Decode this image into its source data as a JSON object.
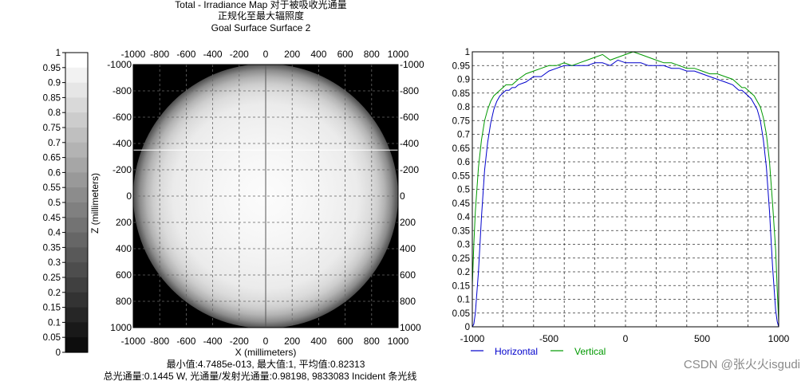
{
  "header": {
    "title": "Total - Irradiance Map 对于被吸收光通量",
    "subtitle1": "正规化至最大辐照度",
    "subtitle2": "Goal Surface Surface 2"
  },
  "footer": {
    "line1": "最小值:4.7485e-013, 最大值:1, 平均值:0.82313",
    "line2": "总光通量:0.1445 W, 光通量/发射光通量:0.98198, 9833083 Incident 条光线"
  },
  "watermark": "CSDN @张火火isgudi",
  "chart_data": [
    {
      "type": "colorbar",
      "colormap": "grayscale",
      "range": [
        0,
        1
      ],
      "ticks": [
        1,
        0.95,
        0.9,
        0.85,
        0.8,
        0.75,
        0.7,
        0.65,
        0.6,
        0.55,
        0.5,
        0.45,
        0.4,
        0.35,
        0.3,
        0.25,
        0.2,
        0.15,
        0.1,
        0.05,
        0
      ],
      "tick_labels": [
        "1",
        "0.95",
        "0.9",
        "0.85",
        "0.8",
        "0.75",
        "0.7",
        "0.65",
        "0.6",
        "0.55",
        "0.5",
        "0.45",
        "0.4",
        "0.35",
        "0.3",
        "0.25",
        "0.2",
        "0.15",
        "0.1",
        "0.05",
        "0"
      ]
    },
    {
      "type": "heatmap",
      "xlabel": "X (millimeters)",
      "ylabel": "Z (millimeters)",
      "xlim": [
        -1000,
        1000
      ],
      "ylim": [
        -1000,
        1000
      ],
      "y_inverted": true,
      "x_ticks": [
        -1000,
        -800,
        -600,
        -400,
        -200,
        0,
        200,
        400,
        600,
        800,
        1000
      ],
      "y_ticks": [
        -1000,
        -800,
        -600,
        -400,
        -200,
        0,
        200,
        400,
        600,
        800,
        1000
      ],
      "grid": true,
      "illuminated_region": {
        "shape": "circle",
        "radius": 1000,
        "profile_r": [
          0,
          300,
          500,
          700,
          800,
          850,
          900,
          950,
          1000
        ],
        "profile_v": [
          0.99,
          0.97,
          0.95,
          0.92,
          0.86,
          0.8,
          0.7,
          0.55,
          0.3
        ]
      },
      "background_value": 0,
      "cross_section": {
        "x": 0,
        "z": -350
      }
    },
    {
      "type": "line",
      "xlim": [
        -1000,
        1000
      ],
      "ylim": [
        0,
        1
      ],
      "x_ticks": [
        -1000,
        -500,
        0,
        500,
        1000
      ],
      "y_ticks": [
        0,
        0.05,
        0.1,
        0.15,
        0.2,
        0.25,
        0.3,
        0.35,
        0.4,
        0.45,
        0.5,
        0.55,
        0.6,
        0.65,
        0.7,
        0.75,
        0.8,
        0.85,
        0.9,
        0.95,
        1
      ],
      "y_tick_labels": [
        "0",
        "0.05",
        "0.1",
        "0.15",
        "0.2",
        "0.25",
        "0.3",
        "0.35",
        "0.4",
        "0.45",
        "0.5",
        "0.55",
        "0.6",
        "0.65",
        "0.7",
        "0.75",
        "0.8",
        "0.85",
        "0.9",
        "0.95",
        "1"
      ],
      "grid": true,
      "legend_position": "bottom-left",
      "series": [
        {
          "name": "Horizontal",
          "color": "#0000cc",
          "x": [
            -1000,
            -990,
            -980,
            -960,
            -940,
            -920,
            -900,
            -880,
            -860,
            -840,
            -820,
            -800,
            -780,
            -760,
            -740,
            -720,
            -700,
            -650,
            -600,
            -550,
            -500,
            -450,
            -400,
            -350,
            -300,
            -250,
            -200,
            -150,
            -100,
            -50,
            0,
            50,
            100,
            150,
            200,
            250,
            300,
            350,
            400,
            450,
            500,
            550,
            600,
            650,
            700,
            720,
            740,
            760,
            780,
            800,
            820,
            840,
            860,
            880,
            900,
            920,
            940,
            960,
            980,
            990,
            1000
          ],
          "y": [
            0.0,
            0.01,
            0.05,
            0.2,
            0.4,
            0.57,
            0.67,
            0.74,
            0.79,
            0.82,
            0.84,
            0.85,
            0.86,
            0.86,
            0.87,
            0.87,
            0.88,
            0.89,
            0.91,
            0.91,
            0.93,
            0.94,
            0.95,
            0.95,
            0.95,
            0.95,
            0.96,
            0.96,
            0.95,
            0.97,
            0.96,
            0.96,
            0.96,
            0.95,
            0.95,
            0.95,
            0.94,
            0.94,
            0.93,
            0.93,
            0.92,
            0.91,
            0.9,
            0.89,
            0.88,
            0.87,
            0.86,
            0.86,
            0.85,
            0.84,
            0.83,
            0.81,
            0.79,
            0.75,
            0.68,
            0.58,
            0.42,
            0.22,
            0.06,
            0.02,
            0.0
          ]
        },
        {
          "name": "Vertical",
          "color": "#009900",
          "x": [
            -1000,
            -990,
            -980,
            -960,
            -940,
            -920,
            -900,
            -880,
            -860,
            -840,
            -820,
            -800,
            -780,
            -760,
            -740,
            -720,
            -700,
            -650,
            -600,
            -550,
            -500,
            -450,
            -400,
            -350,
            -300,
            -250,
            -200,
            -150,
            -100,
            -50,
            0,
            50,
            100,
            150,
            200,
            250,
            300,
            350,
            400,
            450,
            500,
            550,
            600,
            650,
            700,
            720,
            740,
            760,
            780,
            800,
            820,
            840,
            860,
            880,
            900,
            920,
            940,
            960,
            980,
            990,
            1000
          ],
          "y": [
            0.15,
            0.3,
            0.42,
            0.58,
            0.68,
            0.75,
            0.79,
            0.82,
            0.84,
            0.85,
            0.86,
            0.87,
            0.88,
            0.88,
            0.88,
            0.89,
            0.9,
            0.92,
            0.93,
            0.94,
            0.95,
            0.95,
            0.96,
            0.95,
            0.96,
            0.97,
            0.98,
            0.99,
            0.97,
            0.98,
            0.99,
            1.0,
            0.99,
            0.98,
            0.97,
            0.96,
            0.96,
            0.95,
            0.94,
            0.94,
            0.93,
            0.92,
            0.92,
            0.91,
            0.9,
            0.89,
            0.88,
            0.87,
            0.87,
            0.86,
            0.85,
            0.84,
            0.82,
            0.8,
            0.76,
            0.7,
            0.6,
            0.45,
            0.28,
            0.14,
            0.02
          ]
        }
      ]
    }
  ]
}
